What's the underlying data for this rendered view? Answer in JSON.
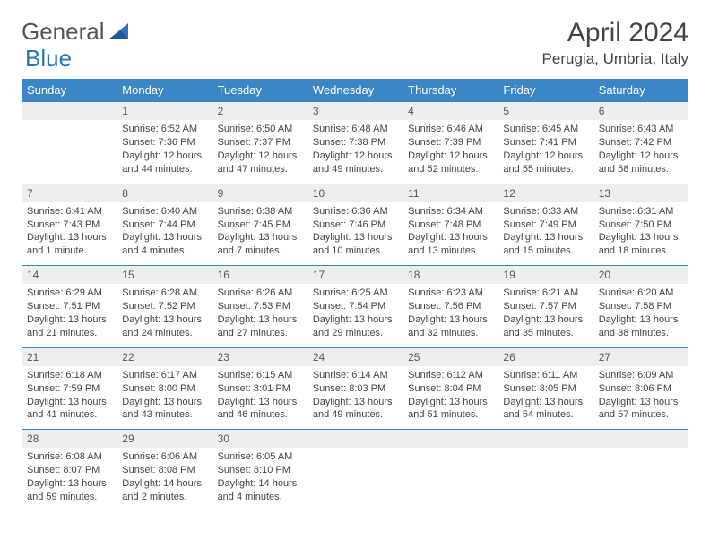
{
  "brand": {
    "part1": "General",
    "part2": "Blue"
  },
  "colors": {
    "header_bg": "#3b86c6",
    "header_text": "#ffffff",
    "daynum_bg": "#eceeef",
    "text": "#444444",
    "rule": "#3b86c6",
    "logo_gray": "#555555",
    "logo_blue": "#2b74b8"
  },
  "title": "April 2024",
  "location": "Perugia, Umbria, Italy",
  "weekdays": [
    "Sunday",
    "Monday",
    "Tuesday",
    "Wednesday",
    "Thursday",
    "Friday",
    "Saturday"
  ],
  "layout": {
    "cols": 7,
    "rows": 5,
    "leading_blanks": 1,
    "days_in_month": 30
  },
  "days": [
    {
      "n": 1,
      "sunrise": "6:52 AM",
      "sunset": "7:36 PM",
      "daylight": "12 hours and 44 minutes."
    },
    {
      "n": 2,
      "sunrise": "6:50 AM",
      "sunset": "7:37 PM",
      "daylight": "12 hours and 47 minutes."
    },
    {
      "n": 3,
      "sunrise": "6:48 AM",
      "sunset": "7:38 PM",
      "daylight": "12 hours and 49 minutes."
    },
    {
      "n": 4,
      "sunrise": "6:46 AM",
      "sunset": "7:39 PM",
      "daylight": "12 hours and 52 minutes."
    },
    {
      "n": 5,
      "sunrise": "6:45 AM",
      "sunset": "7:41 PM",
      "daylight": "12 hours and 55 minutes."
    },
    {
      "n": 6,
      "sunrise": "6:43 AM",
      "sunset": "7:42 PM",
      "daylight": "12 hours and 58 minutes."
    },
    {
      "n": 7,
      "sunrise": "6:41 AM",
      "sunset": "7:43 PM",
      "daylight": "13 hours and 1 minute."
    },
    {
      "n": 8,
      "sunrise": "6:40 AM",
      "sunset": "7:44 PM",
      "daylight": "13 hours and 4 minutes."
    },
    {
      "n": 9,
      "sunrise": "6:38 AM",
      "sunset": "7:45 PM",
      "daylight": "13 hours and 7 minutes."
    },
    {
      "n": 10,
      "sunrise": "6:36 AM",
      "sunset": "7:46 PM",
      "daylight": "13 hours and 10 minutes."
    },
    {
      "n": 11,
      "sunrise": "6:34 AM",
      "sunset": "7:48 PM",
      "daylight": "13 hours and 13 minutes."
    },
    {
      "n": 12,
      "sunrise": "6:33 AM",
      "sunset": "7:49 PM",
      "daylight": "13 hours and 15 minutes."
    },
    {
      "n": 13,
      "sunrise": "6:31 AM",
      "sunset": "7:50 PM",
      "daylight": "13 hours and 18 minutes."
    },
    {
      "n": 14,
      "sunrise": "6:29 AM",
      "sunset": "7:51 PM",
      "daylight": "13 hours and 21 minutes."
    },
    {
      "n": 15,
      "sunrise": "6:28 AM",
      "sunset": "7:52 PM",
      "daylight": "13 hours and 24 minutes."
    },
    {
      "n": 16,
      "sunrise": "6:26 AM",
      "sunset": "7:53 PM",
      "daylight": "13 hours and 27 minutes."
    },
    {
      "n": 17,
      "sunrise": "6:25 AM",
      "sunset": "7:54 PM",
      "daylight": "13 hours and 29 minutes."
    },
    {
      "n": 18,
      "sunrise": "6:23 AM",
      "sunset": "7:56 PM",
      "daylight": "13 hours and 32 minutes."
    },
    {
      "n": 19,
      "sunrise": "6:21 AM",
      "sunset": "7:57 PM",
      "daylight": "13 hours and 35 minutes."
    },
    {
      "n": 20,
      "sunrise": "6:20 AM",
      "sunset": "7:58 PM",
      "daylight": "13 hours and 38 minutes."
    },
    {
      "n": 21,
      "sunrise": "6:18 AM",
      "sunset": "7:59 PM",
      "daylight": "13 hours and 41 minutes."
    },
    {
      "n": 22,
      "sunrise": "6:17 AM",
      "sunset": "8:00 PM",
      "daylight": "13 hours and 43 minutes."
    },
    {
      "n": 23,
      "sunrise": "6:15 AM",
      "sunset": "8:01 PM",
      "daylight": "13 hours and 46 minutes."
    },
    {
      "n": 24,
      "sunrise": "6:14 AM",
      "sunset": "8:03 PM",
      "daylight": "13 hours and 49 minutes."
    },
    {
      "n": 25,
      "sunrise": "6:12 AM",
      "sunset": "8:04 PM",
      "daylight": "13 hours and 51 minutes."
    },
    {
      "n": 26,
      "sunrise": "6:11 AM",
      "sunset": "8:05 PM",
      "daylight": "13 hours and 54 minutes."
    },
    {
      "n": 27,
      "sunrise": "6:09 AM",
      "sunset": "8:06 PM",
      "daylight": "13 hours and 57 minutes."
    },
    {
      "n": 28,
      "sunrise": "6:08 AM",
      "sunset": "8:07 PM",
      "daylight": "13 hours and 59 minutes."
    },
    {
      "n": 29,
      "sunrise": "6:06 AM",
      "sunset": "8:08 PM",
      "daylight": "14 hours and 2 minutes."
    },
    {
      "n": 30,
      "sunrise": "6:05 AM",
      "sunset": "8:10 PM",
      "daylight": "14 hours and 4 minutes."
    }
  ],
  "labels": {
    "sunrise": "Sunrise:",
    "sunset": "Sunset:",
    "daylight": "Daylight:"
  }
}
